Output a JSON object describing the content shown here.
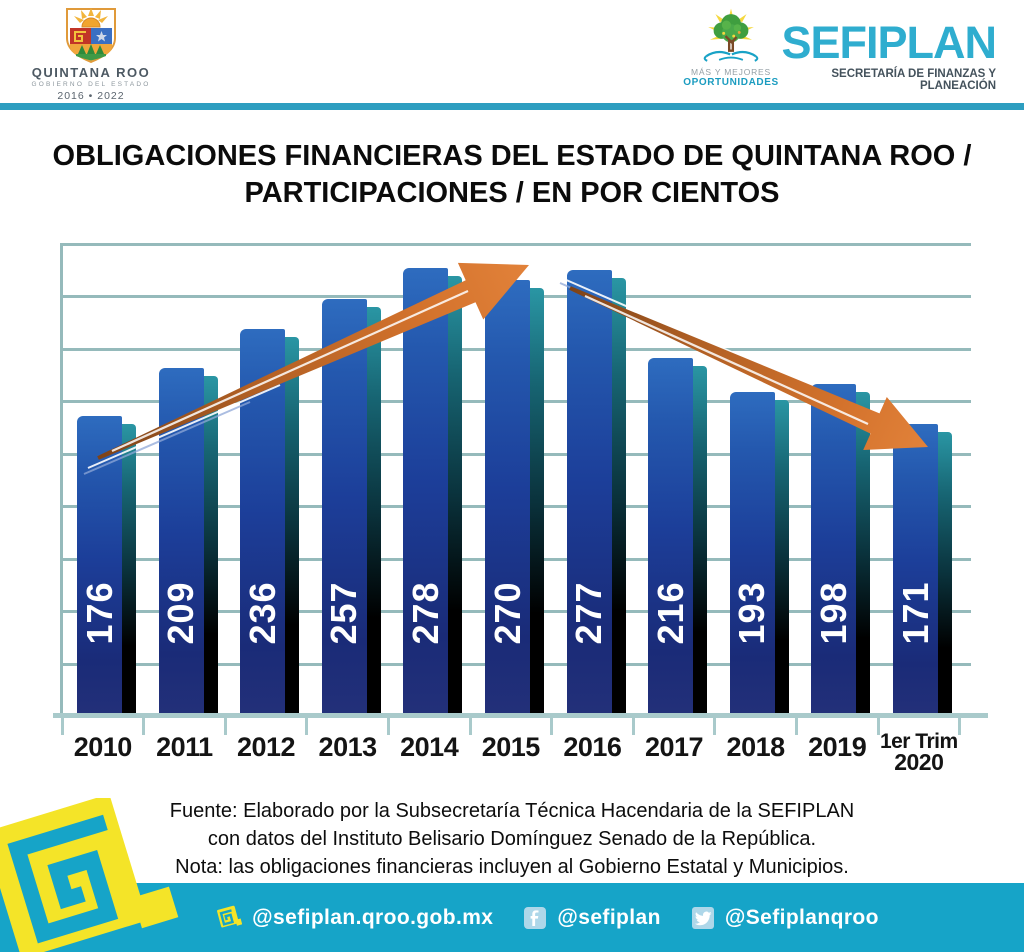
{
  "header": {
    "coat_of_arms": {
      "title": "QUINTANA ROO",
      "subtitle": "GOBIERNO DEL ESTADO",
      "period": "2016 • 2022"
    },
    "oportunidades": {
      "line1": "MÁS Y MEJORES",
      "line2": "OPORTUNIDADES"
    },
    "sefiplan": {
      "name": "SEFIPLAN",
      "subtitle": "SECRETARÍA DE FINANZAS Y PLANEACIÓN"
    }
  },
  "title": {
    "line1": "OBLIGACIONES FINANCIERAS DEL ESTADO DE QUINTANA ROO /",
    "line2": "PARTICIPACIONES / EN POR CIENTOS"
  },
  "chart_data": {
    "type": "bar",
    "title": "OBLIGACIONES FINANCIERAS DEL ESTADO DE QUINTANA ROO / PARTICIPACIONES / EN POR CIENTOS",
    "categories": [
      "2010",
      "2011",
      "2012",
      "2013",
      "2014",
      "2015",
      "2016",
      "2017",
      "2018",
      "2019",
      "1er Trim 2020"
    ],
    "values": [
      176,
      209,
      236,
      257,
      278,
      270,
      277,
      216,
      193,
      198,
      171
    ],
    "xlabel": "",
    "ylabel": "",
    "gridlines": true,
    "legend": false,
    "annotations": [
      "orange rising arrow from 2010 to 2014-2015 peak",
      "orange falling arrow from 2016 to 1er Trim 2020"
    ]
  },
  "footer": {
    "line1": "Fuente: Elaborado por la Subsecretaría Técnica Hacendaria de la SEFIPLAN",
    "line2": "con datos del Instituto Belisario Domínguez Senado de la República.",
    "line3": "Nota: las obligaciones financieras incluyen al Gobierno Estatal y Municipios."
  },
  "social": {
    "website": "@sefiplan.qroo.gob.mx",
    "facebook": "@sefiplan",
    "twitter": "@Sefiplanqroo"
  },
  "colors": {
    "brand_cyan": "#16a4c8",
    "divider_teal": "#2d9ec0",
    "sefiplan_text": "#2fadcf",
    "bar_blue_top": "#2e6cbf",
    "bar_blue_bottom": "#1b2b77",
    "bar_shadow_teal": "#2a96a4",
    "gridline": "#95babb",
    "arrow_orange": "#d3722c",
    "logo_yellow": "#f4e428"
  }
}
